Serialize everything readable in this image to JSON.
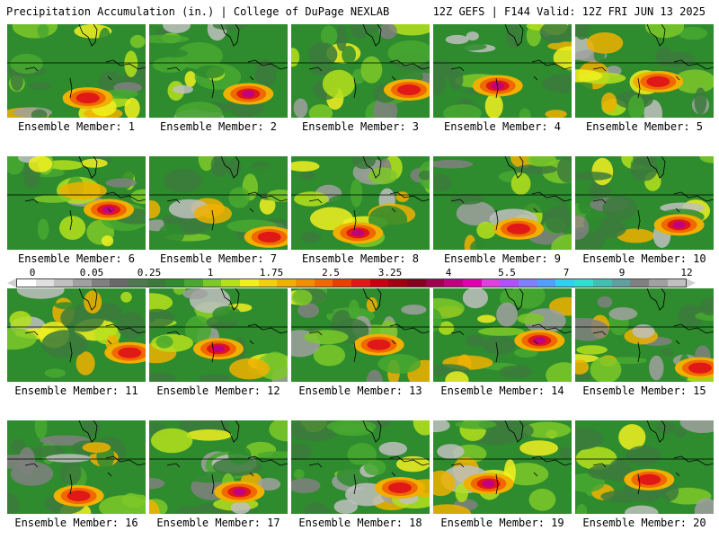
{
  "header": {
    "title": "Precipitation Accumulation (in.) | College of DuPage NEXLAB",
    "run_info": "12Z GEFS | F144 Valid: 12Z FRI JUN 13 2025"
  },
  "legend": {
    "ticks": [
      "0",
      "0.05",
      "0.25",
      "1",
      "1.75",
      "2.5",
      "3.25",
      "4",
      "5.5",
      "7",
      "9",
      "12"
    ],
    "colors": [
      "#ffffff",
      "#e0e0e0",
      "#c0c0c0",
      "#a0a0a0",
      "#808080",
      "#686868",
      "#507850",
      "#3c7a3c",
      "#2e8b2e",
      "#48a830",
      "#7cc828",
      "#b4e01c",
      "#f0f020",
      "#f0d010",
      "#f0b000",
      "#f09000",
      "#f06800",
      "#e84000",
      "#e01818",
      "#c80010",
      "#a00010",
      "#880020",
      "#a00050",
      "#c00080",
      "#e000b0",
      "#e040e0",
      "#b050ff",
      "#8080ff",
      "#50a0ff",
      "#30d0f0",
      "#30e0d0",
      "#40c0b0",
      "#60a0a0",
      "#808080",
      "#a0a0a0",
      "#c0c0c0"
    ]
  },
  "panels": [
    {
      "label": "Ensemble Member: 1"
    },
    {
      "label": "Ensemble Member: 2"
    },
    {
      "label": "Ensemble Member: 3"
    },
    {
      "label": "Ensemble Member: 4"
    },
    {
      "label": "Ensemble Member: 5"
    },
    {
      "label": "Ensemble Member: 6"
    },
    {
      "label": "Ensemble Member: 7"
    },
    {
      "label": "Ensemble Member: 8"
    },
    {
      "label": "Ensemble Member: 9"
    },
    {
      "label": "Ensemble Member: 10"
    },
    {
      "label": "Ensemble Member: 11"
    },
    {
      "label": "Ensemble Member: 12"
    },
    {
      "label": "Ensemble Member: 13"
    },
    {
      "label": "Ensemble Member: 14"
    },
    {
      "label": "Ensemble Member: 15"
    },
    {
      "label": "Ensemble Member: 16"
    },
    {
      "label": "Ensemble Member: 17"
    },
    {
      "label": "Ensemble Member: 18"
    },
    {
      "label": "Ensemble Member: 19"
    },
    {
      "label": "Ensemble Member: 20"
    }
  ]
}
